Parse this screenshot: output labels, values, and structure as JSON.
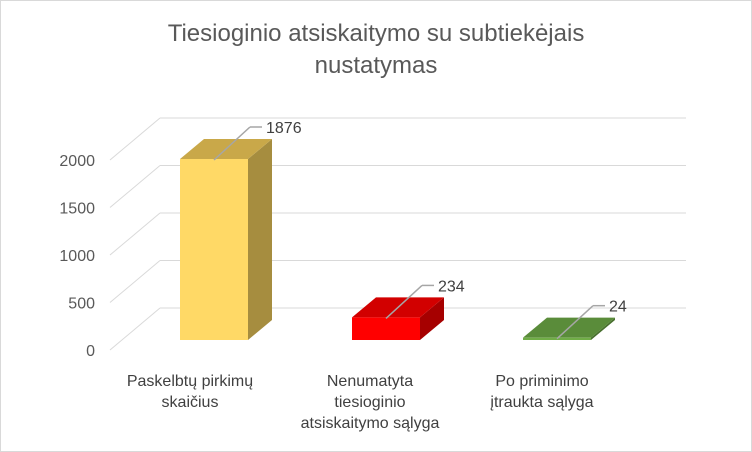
{
  "chart_data": {
    "type": "bar",
    "title_lines": [
      "Tiesioginio atsiskaitymo su subtiekėjais",
      "nustatymas"
    ],
    "categories": [
      [
        "Paskelbtų pirkimų",
        "skaičius"
      ],
      [
        "Nenumatyta",
        "tiesioginio",
        "atsiskaitymo sąlyga"
      ],
      [
        "Po priminimo",
        "įtraukta sąlyga"
      ]
    ],
    "values": [
      1876,
      234,
      24
    ],
    "ylim": [
      0,
      2000
    ],
    "y_ticks": [
      "0",
      "500",
      "1000",
      "1500",
      "2000"
    ],
    "grid": true,
    "legend": "none",
    "style": "3d-column",
    "colors": [
      "#ffd966",
      "#ff0000",
      "#70ad47"
    ],
    "side_colors": [
      "#a68d3f",
      "#a60000",
      "#48702e"
    ],
    "top_colors": [
      "#c9a849",
      "#d20000",
      "#5a8c3a"
    ]
  }
}
